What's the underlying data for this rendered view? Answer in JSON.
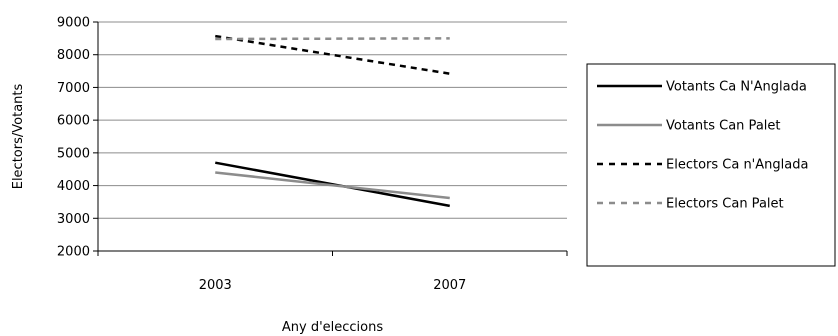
{
  "chart_data": {
    "type": "line",
    "categories": [
      "2003",
      "2007"
    ],
    "xlabel": "Any d'eleccions",
    "ylabel": "Electors/Votants",
    "ylim": [
      2000,
      9000
    ],
    "yticks": [
      2000,
      3000,
      4000,
      5000,
      6000,
      7000,
      8000,
      9000
    ],
    "grid": "horizontal",
    "legend_position": "right",
    "series": [
      {
        "name": "Votants Ca N'Anglada",
        "values": [
          4700,
          3380
        ],
        "color": "#000000",
        "dash": "solid"
      },
      {
        "name": "Votants Can Palet",
        "values": [
          4400,
          3620
        ],
        "color": "#8c8c8c",
        "dash": "solid"
      },
      {
        "name": "Electors Ca n'Anglada",
        "values": [
          8570,
          7420
        ],
        "color": "#000000",
        "dash": "dashed"
      },
      {
        "name": "Electors Can Palet",
        "values": [
          8480,
          8500
        ],
        "color": "#8c8c8c",
        "dash": "dashed"
      }
    ]
  }
}
